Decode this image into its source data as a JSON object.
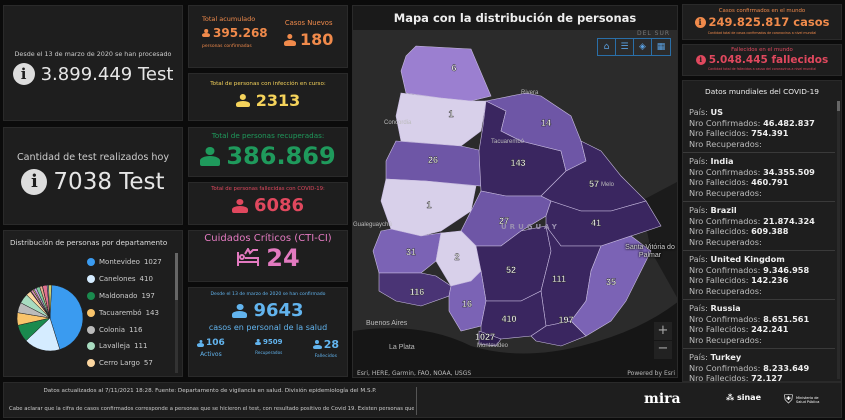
{
  "tests_total": {
    "label": "Desde el 13 de marzo de 2020 se han procesado",
    "value": "3.899.449 Test"
  },
  "tests_today": {
    "label": "Cantidad de test realizados hoy",
    "value": "7038 Test"
  },
  "acumulado": {
    "label": "Total acumulado",
    "value": "395.268",
    "sub": "personas confirmadas"
  },
  "nuevos": {
    "label": "Casos Nuevos",
    "value": "180"
  },
  "en_curso": {
    "label": "Total de personas con infección en curso:",
    "value": "2313"
  },
  "recuperadas": {
    "label": "Total de personas recuperadas:",
    "value": "386.869"
  },
  "fallecidas": {
    "label": "Total de personas fallecidas con COVID-19:",
    "value": "6086"
  },
  "cti": {
    "label": "Cuidados Críticos (CTI-CI)",
    "value": "24"
  },
  "salud": {
    "label": "Desde el 13 de marzo de 2020 se han confirmado",
    "value": "9643",
    "sub": "casos en personal de la salud",
    "activos": "106",
    "activos_label": "Activos",
    "recuperados": "9509",
    "recuperados_label": "Recuperados",
    "fallecidos": "28",
    "fallecidos_label": "Fallecidos"
  },
  "distribution": {
    "title": "Distribución de personas por departamento",
    "items": [
      {
        "name": "Montevideo",
        "value": 1027,
        "color": "#3a9bf0"
      },
      {
        "name": "Canelones",
        "value": 410,
        "color": "#d5ecff"
      },
      {
        "name": "Maldonado",
        "value": 197,
        "color": "#1a8a4e"
      },
      {
        "name": "Tacuarembó",
        "value": 143,
        "color": "#f9c46b"
      },
      {
        "name": "Colonia",
        "value": 116,
        "color": "#bbbbbb"
      },
      {
        "name": "Lavalleja",
        "value": 111,
        "color": "#a8dcc0"
      },
      {
        "name": "Cerro Largo",
        "value": 57,
        "color": "#fcd6a0"
      }
    ]
  },
  "map": {
    "title": "Mapa con la distribución de personas",
    "country_label": "URUGUAY",
    "corner_label": "DEL SUR",
    "cities": [
      "Rivera",
      "Concordia",
      "Tacuarembó",
      "Melo",
      "Gualeguaychú",
      "Santa Vitória do Palmar",
      "Buenos Aires",
      "La Plata",
      "Montevideo"
    ],
    "attribution": "Esri, HERE, Garmin, FAO, NOAA, USGS",
    "powered": "Powered by Esri",
    "departments": [
      {
        "id": "artigas",
        "value": "6",
        "color": "#9b7fd0"
      },
      {
        "id": "salto",
        "value": "1",
        "color": "#d8d0ea"
      },
      {
        "id": "paysandu",
        "value": "26",
        "color": "#6e56a6"
      },
      {
        "id": "rio-negro",
        "value": "1",
        "color": "#d8d0ea"
      },
      {
        "id": "tacuarembo",
        "value": "143",
        "color": "#3a2660"
      },
      {
        "id": "rivera",
        "value": "14",
        "color": "#6e56a6"
      },
      {
        "id": "cerro-largo",
        "value": "57",
        "color": "#3a2660"
      },
      {
        "id": "durazno",
        "value": "27",
        "color": "#6e56a6"
      },
      {
        "id": "treinta-y-tres",
        "value": "41",
        "color": "#3a2660"
      },
      {
        "id": "soriano",
        "value": "31",
        "color": "#7b63b5"
      },
      {
        "id": "flores",
        "value": "2",
        "color": "#d8d0ea"
      },
      {
        "id": "florida",
        "value": "52",
        "color": "#3a2660"
      },
      {
        "id": "colonia",
        "value": "116",
        "color": "#4a3475"
      },
      {
        "id": "san-jose",
        "value": "16",
        "color": "#7b63b5"
      },
      {
        "id": "lavalleja",
        "value": "111",
        "color": "#3a2660"
      },
      {
        "id": "rocha",
        "value": "35",
        "color": "#7b63b5"
      },
      {
        "id": "canelones",
        "value": "410",
        "color": "#3a2660"
      },
      {
        "id": "maldonado",
        "value": "197",
        "color": "#3a2660"
      },
      {
        "id": "montevideo",
        "value": "1027",
        "color": "#2d1d4e"
      }
    ]
  },
  "world_cases": {
    "label": "Casos confirmados en el mundo",
    "value": "249.825.817 casos",
    "sub": "Cantidad total de casos confirmados de coronavirus a nivel mundial"
  },
  "world_deaths": {
    "label": "Fallecidos en el mundo",
    "value": "5.048.445 fallecidos",
    "sub": "Cantidad total de fallecidos a causa del coronavirus a nivel mundial"
  },
  "world": {
    "title": "Datos mundiales del COVID-19",
    "l_pais": "País:",
    "l_conf": "Nro Confirmados:",
    "l_fall": "Nro Fallecidos:",
    "l_rec": "Nro Recuperados:",
    "countries": [
      {
        "name": "US",
        "conf": "46.482.837",
        "fall": "754.391"
      },
      {
        "name": "India",
        "conf": "34.355.509",
        "fall": "460.791"
      },
      {
        "name": "Brazil",
        "conf": "21.874.324",
        "fall": "609.388"
      },
      {
        "name": "United Kingdom",
        "conf": "9.346.958",
        "fall": "142.236"
      },
      {
        "name": "Russia",
        "conf": "8.651.561",
        "fall": "242.241"
      },
      {
        "name": "Turkey",
        "conf": "8.233.649",
        "fall": "72.127"
      }
    ]
  },
  "footer": {
    "line1": "Datos actualizados al 7/11/2021 18:28. Fuente: Departamento de vigilancia en salud. División epidemiología del M.S.P.",
    "line2": "Cabe aclarar que la cifra de casos confirmados corresponde a personas que se hicieron el test, con resultado positivo de Covid 19. Existen personas que se testearon en más",
    "logos": [
      "mira",
      "sinae",
      "Ministerio de Salud Pública"
    ]
  },
  "colors": {
    "orange": "#f08a4b",
    "yellow": "#f5d35b",
    "green": "#1f9a5c",
    "red": "#e0485e",
    "pink": "#e37ac0",
    "blue": "#62b4ee"
  }
}
